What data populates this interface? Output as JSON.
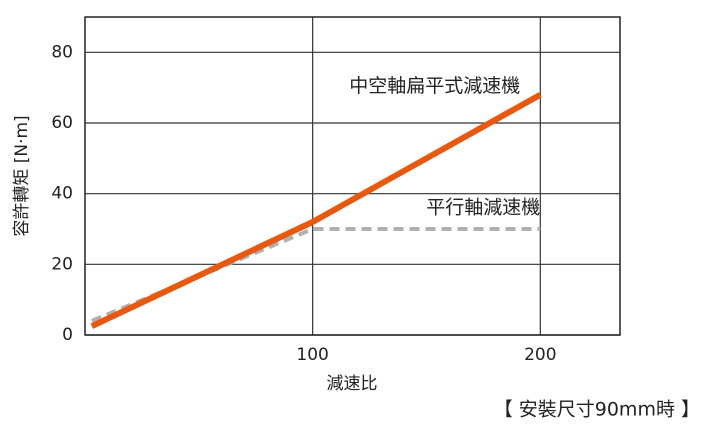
{
  "chart_data": {
    "type": "line",
    "y_label": "容許轉矩 [N·m]",
    "x_label": "減速比",
    "note": "【 安裝尺寸90mm時 】",
    "x": [
      3,
      100,
      200
    ],
    "series": [
      {
        "name": "中空軸扁平式減速機",
        "color": "#e8580f",
        "dashed": false,
        "values": [
          2.5,
          32,
          68
        ]
      },
      {
        "name": "平行軸減速機",
        "color": "#b0b0b0",
        "dashed": true,
        "values": [
          4,
          30,
          30
        ]
      }
    ],
    "xlim": [
      0,
      235
    ],
    "xticks": [
      100,
      200
    ],
    "ylim": [
      0,
      90
    ],
    "yticks": [
      0,
      20,
      40,
      60,
      80
    ],
    "grid": true
  }
}
